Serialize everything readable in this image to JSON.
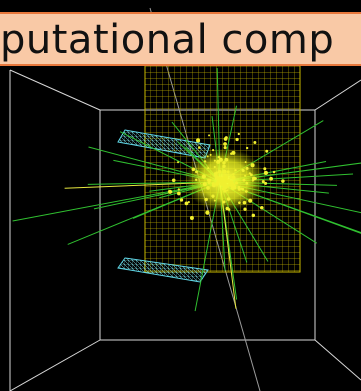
{
  "banner": {
    "text": "putational comp"
  }
}
